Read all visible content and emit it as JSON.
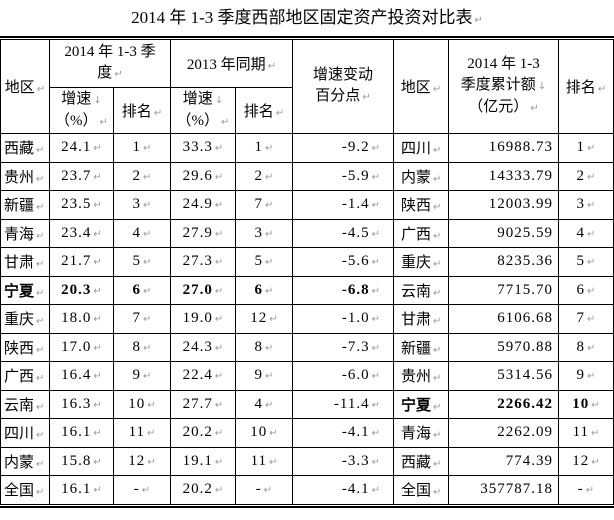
{
  "title": "2014 年 1-3 季度西部地区固定资产投资对比表",
  "icons": {
    "paragraph_mark": "↵",
    "line_break_mark": "↓"
  },
  "colors": {
    "text": "#000000",
    "border": "#000000",
    "formatting_mark": "#999999",
    "background": "#ffffff"
  },
  "table": {
    "header": {
      "region_left": "地区",
      "group_2014": {
        "lines": [
          "2014 年 1-3 季",
          "度"
        ]
      },
      "group_2013": "2013 年同期",
      "growth": {
        "lines": [
          "增速",
          "（%）"
        ]
      },
      "rank": "排名",
      "change": {
        "lines": [
          "增速变动",
          "百分点"
        ]
      },
      "region_right": "地区",
      "amount": {
        "lines": [
          "2014 年 1-3",
          "季度累计额",
          "（亿元）"
        ]
      },
      "rank_right": "排名"
    },
    "rows": [
      {
        "region": "西藏",
        "growth_2014": "24.1",
        "rank_2014": "1",
        "growth_2013": "33.3",
        "rank_2013": "1",
        "change": "-9.2",
        "region2": "四川",
        "amount": "16988.73",
        "rank_amount": "1",
        "bold_left": false,
        "bold_right": false
      },
      {
        "region": "贵州",
        "growth_2014": "23.7",
        "rank_2014": "2",
        "growth_2013": "29.6",
        "rank_2013": "2",
        "change": "-5.9",
        "region2": "内蒙",
        "amount": "14333.79",
        "rank_amount": "2",
        "bold_left": false,
        "bold_right": false
      },
      {
        "region": "新疆",
        "growth_2014": "23.5",
        "rank_2014": "3",
        "growth_2013": "24.9",
        "rank_2013": "7",
        "change": "-1.4",
        "region2": "陕西",
        "amount": "12003.99",
        "rank_amount": "3",
        "bold_left": false,
        "bold_right": false
      },
      {
        "region": "青海",
        "growth_2014": "23.4",
        "rank_2014": "4",
        "growth_2013": "27.9",
        "rank_2013": "3",
        "change": "-4.5",
        "region2": "广西",
        "amount": "9025.59",
        "rank_amount": "4",
        "bold_left": false,
        "bold_right": false
      },
      {
        "region": "甘肃",
        "growth_2014": "21.7",
        "rank_2014": "5",
        "growth_2013": "27.3",
        "rank_2013": "5",
        "change": "-5.6",
        "region2": "重庆",
        "amount": "8235.36",
        "rank_amount": "5",
        "bold_left": false,
        "bold_right": false
      },
      {
        "region": "宁夏",
        "growth_2014": "20.3",
        "rank_2014": "6",
        "growth_2013": "27.0",
        "rank_2013": "6",
        "change": "-6.8",
        "region2": "云南",
        "amount": "7715.70",
        "rank_amount": "6",
        "bold_left": true,
        "bold_right": false
      },
      {
        "region": "重庆",
        "growth_2014": "18.0",
        "rank_2014": "7",
        "growth_2013": "19.0",
        "rank_2013": "12",
        "change": "-1.0",
        "region2": "甘肃",
        "amount": "6106.68",
        "rank_amount": "7",
        "bold_left": false,
        "bold_right": false
      },
      {
        "region": "陕西",
        "growth_2014": "17.0",
        "rank_2014": "8",
        "growth_2013": "24.3",
        "rank_2013": "8",
        "change": "-7.3",
        "region2": "新疆",
        "amount": "5970.88",
        "rank_amount": "8",
        "bold_left": false,
        "bold_right": false
      },
      {
        "region": "广西",
        "growth_2014": "16.4",
        "rank_2014": "9",
        "growth_2013": "22.4",
        "rank_2013": "9",
        "change": "-6.0",
        "region2": "贵州",
        "amount": "5314.56",
        "rank_amount": "9",
        "bold_left": false,
        "bold_right": false
      },
      {
        "region": "云南",
        "growth_2014": "16.3",
        "rank_2014": "10",
        "growth_2013": "27.7",
        "rank_2013": "4",
        "change": "-11.4",
        "region2": "宁夏",
        "amount": "2266.42",
        "rank_amount": "10",
        "bold_left": false,
        "bold_right": true
      },
      {
        "region": "四川",
        "growth_2014": "16.1",
        "rank_2014": "11",
        "growth_2013": "20.2",
        "rank_2013": "10",
        "change": "-4.1",
        "region2": "青海",
        "amount": "2262.09",
        "rank_amount": "11",
        "bold_left": false,
        "bold_right": false
      },
      {
        "region": "内蒙",
        "growth_2014": "15.8",
        "rank_2014": "12",
        "growth_2013": "19.1",
        "rank_2013": "11",
        "change": "-3.3",
        "region2": "西藏",
        "amount": "774.39",
        "rank_amount": "12",
        "bold_left": false,
        "bold_right": false
      },
      {
        "region": "全国",
        "growth_2014": "16.1",
        "rank_2014": "-",
        "growth_2013": "20.2",
        "rank_2013": "-",
        "change": "-4.1",
        "region2": "全国",
        "amount": "357787.18",
        "rank_amount": "-",
        "bold_left": false,
        "bold_right": false
      }
    ]
  }
}
